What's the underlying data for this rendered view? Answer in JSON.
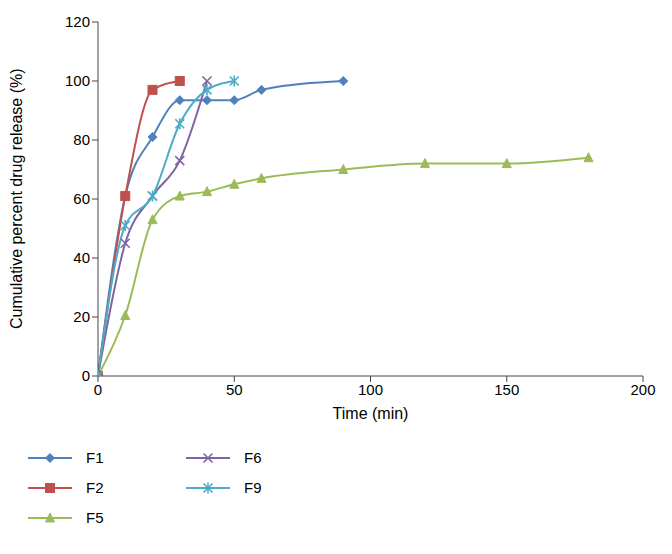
{
  "chart_data": {
    "type": "line",
    "x_label": "Time (min)",
    "y_label": "Cumulative percent drug release (%)",
    "xlim": [
      0,
      200
    ],
    "xticks": [
      0,
      50,
      100,
      150,
      200
    ],
    "ylim": [
      0,
      120
    ],
    "yticks": [
      0,
      20,
      40,
      60,
      80,
      100,
      120
    ],
    "grid": false,
    "legend": "bottom",
    "line_style": "smooth",
    "series": [
      {
        "name": "F1",
        "color": "#4f81bd",
        "marker": "diamond",
        "x": [
          0,
          10,
          20,
          30,
          40,
          50,
          60,
          90
        ],
        "values": [
          0,
          61,
          81,
          93.5,
          93.5,
          93.5,
          97,
          100
        ]
      },
      {
        "name": "F2",
        "color": "#c0504d",
        "marker": "square",
        "x": [
          0,
          10,
          20,
          30
        ],
        "values": [
          0,
          61,
          97,
          100
        ]
      },
      {
        "name": "F5",
        "color": "#9bbb59",
        "marker": "triangle",
        "x": [
          0,
          10,
          20,
          30,
          40,
          50,
          60,
          90,
          120,
          150,
          180
        ],
        "values": [
          0,
          20.5,
          53,
          61,
          62.5,
          65,
          67,
          70,
          72,
          72,
          74
        ]
      },
      {
        "name": "F6",
        "color": "#8064a2",
        "marker": "cross",
        "x": [
          0,
          10,
          20,
          30,
          40
        ],
        "values": [
          0,
          45,
          61,
          73,
          100
        ]
      },
      {
        "name": "F9",
        "color": "#4bacc6",
        "marker": "star",
        "x": [
          0,
          10,
          20,
          30,
          40,
          50
        ],
        "values": [
          0,
          51,
          61,
          85.5,
          97,
          100
        ]
      }
    ]
  }
}
